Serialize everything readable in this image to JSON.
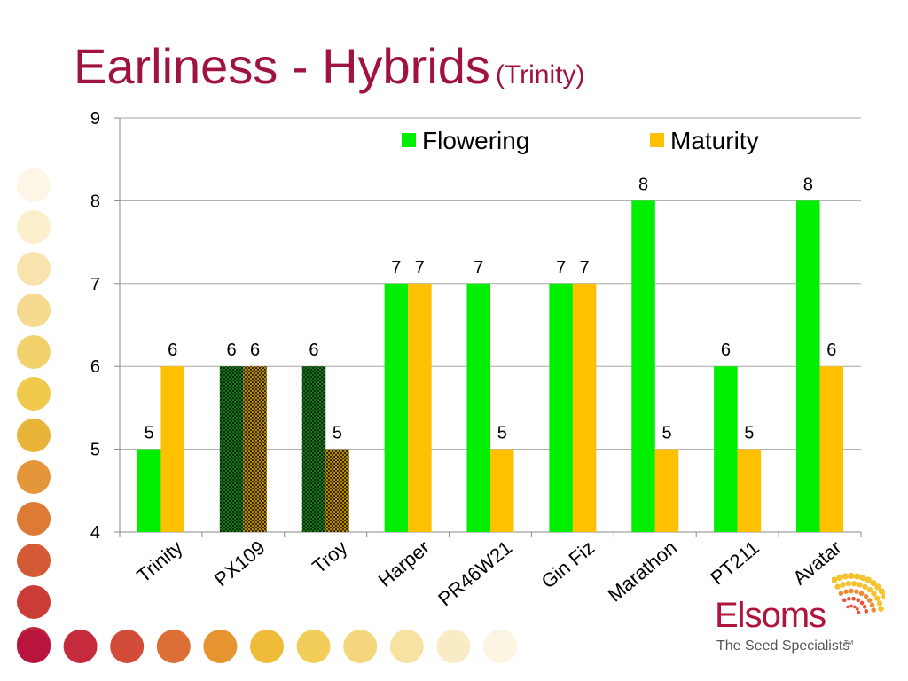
{
  "title": "Earliness - Hybrids",
  "subtitle": "(Trinity)",
  "colors": {
    "title": "#a0123f",
    "flowering": "#00ee00",
    "maturity": "#ffc000",
    "flowering_hatched": "#157a15",
    "maturity_hatched": "#b58a00"
  },
  "chart_data": {
    "type": "bar",
    "categories": [
      "Trinity",
      "PX109",
      "Troy",
      "Harper",
      "PR46W21",
      "Gin Fiz",
      "Marathon",
      "PT211",
      "Avatar"
    ],
    "series": [
      {
        "name": "Flowering",
        "values": [
          5,
          6,
          6,
          7,
          7,
          7,
          8,
          6,
          8
        ]
      },
      {
        "name": "Maturity",
        "values": [
          6,
          6,
          5,
          7,
          5,
          7,
          5,
          5,
          6
        ]
      }
    ],
    "data_labels": {
      "Flowering": [
        "5",
        "6",
        "6",
        "7",
        "7",
        "7",
        "8",
        "6",
        "8"
      ],
      "Maturity": [
        "6",
        "6",
        "5",
        "7",
        "5",
        "7",
        "5",
        "5",
        "6"
      ]
    },
    "hatched_categories": [
      "PX109",
      "Troy"
    ],
    "y_ticks": [
      "4",
      "5",
      "6",
      "7",
      "8",
      "9"
    ],
    "ylim": [
      4,
      9
    ],
    "grid": true,
    "legend_position": "top-right",
    "xlabel": "",
    "ylabel": ""
  },
  "logo": {
    "name": "Elsoms",
    "tagline": "The Seed Specialists",
    "trademark": "TM"
  },
  "decor": {
    "dot_colors_vertical": [
      "#fdf6e6",
      "#fbeecb",
      "#f8e3ae",
      "#f5da8f",
      "#f2d06b",
      "#f0c84c",
      "#e9b43a",
      "#e3973a",
      "#dc7a36",
      "#d45a35",
      "#cb3c37",
      "#c02a3a"
    ],
    "dot_colors_horizontal": [
      "#b8143d",
      "#c62b3d",
      "#d24c39",
      "#dc6f35",
      "#e5942f",
      "#efbc3a",
      "#f2cd59",
      "#f4d77c",
      "#f7e2a2",
      "#f9ebc4",
      "#fcf5e2"
    ]
  }
}
